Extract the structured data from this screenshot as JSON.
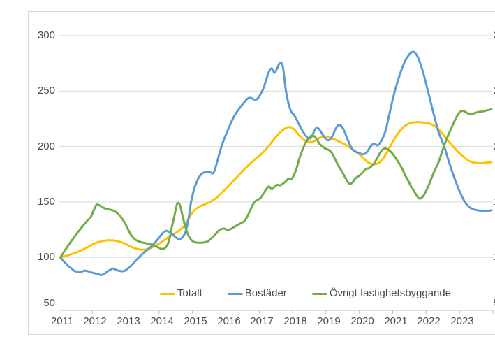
{
  "chart_data": {
    "type": "line",
    "frequency": "monthly",
    "x_start": "2011-01",
    "x_end": "2023-12",
    "x_tick_labels": [
      "2011",
      "2012",
      "2013",
      "2014",
      "2015",
      "2016",
      "2017",
      "2018",
      "2019",
      "2020",
      "2021",
      "2022",
      "2023"
    ],
    "y_ticks": [
      300,
      250,
      200,
      150,
      100,
      50
    ],
    "ylim": [
      50,
      310
    ],
    "grid": "horizontal",
    "legend_position": "bottom",
    "y_axis": "both-left-and-right",
    "series": [
      {
        "name": "Totalt",
        "color": "#FFC000",
        "values": [
          100,
          100.8,
          101.5,
          102.2,
          103,
          103.8,
          104.8,
          105.8,
          107,
          108.2,
          109.5,
          111,
          112.2,
          113.2,
          114,
          114.6,
          115.1,
          115.4,
          115.5,
          115.4,
          115,
          114.4,
          113.6,
          112.6,
          111.4,
          110.2,
          109,
          108.1,
          107.4,
          107,
          107,
          107.3,
          108,
          109,
          110.2,
          111.6,
          113.2,
          115,
          116.8,
          118.4,
          119.9,
          121.4,
          123,
          124.8,
          127,
          130,
          134,
          138.5,
          142,
          144.2,
          145.8,
          147,
          148,
          149,
          150.2,
          151.8,
          153.5,
          155.8,
          158.2,
          160.8,
          163.4,
          166,
          168.6,
          171.2,
          173.8,
          176.4,
          179,
          181.5,
          184,
          186.3,
          188.5,
          190.6,
          192.6,
          195,
          197.8,
          200.8,
          204,
          207.2,
          210.2,
          212.8,
          215,
          216.6,
          217.5,
          217.2,
          215.5,
          212.8,
          209.8,
          207.2,
          205.3,
          204.2,
          204,
          204.6,
          206,
          207.6,
          208.8,
          209.2,
          208.8,
          208,
          207,
          205.9,
          204.8,
          203.6,
          202.3,
          200.8,
          199.2,
          197.5,
          195.8,
          194,
          191.8,
          189.4,
          187,
          185.2,
          184.2,
          184,
          184.6,
          186.2,
          189,
          192.8,
          197.2,
          202,
          206.4,
          210.4,
          213.8,
          216.6,
          218.8,
          220.3,
          221.2,
          221.7,
          222,
          222,
          221.8,
          221.4,
          221,
          220.4,
          219.4,
          217.8,
          215.6,
          212.8,
          209.6,
          206.4,
          203.4,
          200.6,
          197.8,
          195.2,
          192.8,
          190.6,
          188.6,
          187,
          186,
          185.4,
          185,
          184.9,
          185,
          185.3,
          185.7,
          186
        ]
      },
      {
        "name": "Bostäder",
        "color": "#5B9BD5",
        "values": [
          100,
          97,
          94.5,
          92,
          90,
          88,
          87,
          86.5,
          87.5,
          88,
          87.5,
          86.5,
          86,
          85.2,
          84.5,
          84.2,
          85.5,
          87.5,
          89,
          90,
          88.8,
          88,
          87.6,
          87.8,
          89.5,
          91.5,
          94,
          96.8,
          99.4,
          102,
          104.4,
          106.3,
          108.4,
          110.8,
          113.3,
          116.3,
          119.5,
          122.5,
          124,
          123.2,
          121.5,
          119.2,
          117.2,
          116.5,
          118.5,
          123,
          134,
          150,
          161,
          168,
          173,
          175.8,
          176.8,
          177,
          176.6,
          176,
          183,
          192,
          200.5,
          207.5,
          213.5,
          219.5,
          225,
          229.5,
          233,
          236.5,
          239.5,
          242.5,
          244,
          243.2,
          242.2,
          243.5,
          247.5,
          252.5,
          260,
          267.5,
          270.5,
          266.5,
          271,
          275.5,
          272,
          252,
          239,
          231.5,
          228.5,
          224,
          219,
          214.5,
          210.5,
          207.8,
          207.5,
          212.5,
          216.8,
          215.8,
          212,
          208.2,
          205.8,
          206.5,
          210.5,
          216,
          219.5,
          218.5,
          214.5,
          208,
          202,
          197.5,
          195.5,
          194.5,
          193.5,
          193,
          194.5,
          198,
          201.5,
          202.5,
          201,
          203.5,
          208,
          215,
          226,
          237,
          247.5,
          256.5,
          264.5,
          271.5,
          277.5,
          281.5,
          284.5,
          285.5,
          283,
          278,
          270.5,
          261.5,
          251.5,
          241.5,
          231.5,
          222,
          213,
          206.5,
          200,
          192,
          184,
          176.5,
          169.5,
          163,
          157,
          152,
          148,
          145.5,
          144,
          143,
          142.5,
          142,
          141.8,
          141.8,
          142,
          142.5
        ]
      },
      {
        "name": "Övrigt fastighetsbyggande",
        "color": "#70AD47",
        "values": [
          100,
          104,
          107.8,
          111.4,
          115,
          118.4,
          121.8,
          125,
          128.2,
          131.2,
          134,
          136.6,
          142.5,
          147.5,
          147,
          145.5,
          144.3,
          143.5,
          143,
          142.3,
          140.8,
          138.6,
          135.6,
          131.8,
          127,
          122,
          118.3,
          116,
          114.6,
          113.8,
          113.2,
          112.6,
          112,
          111.3,
          110.4,
          109.3,
          108,
          107.6,
          109.5,
          114.5,
          126.5,
          137.5,
          148.5,
          147,
          136.5,
          127,
          120,
          116,
          114,
          113.4,
          113.2,
          113.3,
          113.7,
          114.5,
          116.5,
          119,
          121.6,
          124.3,
          125.7,
          126,
          124.9,
          125.3,
          126.7,
          128.2,
          129.6,
          131,
          132.4,
          136,
          141,
          146.5,
          150.5,
          152,
          153.8,
          157.5,
          161.5,
          164,
          161.5,
          163.8,
          165.5,
          165,
          166.5,
          168.5,
          171,
          170.5,
          174.5,
          181,
          190,
          196.5,
          202.5,
          206.5,
          209.5,
          209.7,
          207.5,
          203,
          200.5,
          198.5,
          197.5,
          196,
          192.5,
          187.5,
          182.5,
          178.5,
          174,
          169.5,
          166.2,
          167.5,
          171,
          173,
          174.8,
          177.5,
          180,
          180.5,
          182.5,
          185.5,
          190,
          194.5,
          197.5,
          198.3,
          197,
          194.8,
          191.5,
          188,
          184,
          179.5,
          174,
          169.5,
          164.6,
          160.5,
          156.3,
          153.2,
          154,
          157.5,
          162.5,
          168.5,
          175,
          180.5,
          186,
          193.5,
          201,
          207.5,
          213.5,
          219,
          224.5,
          229,
          231.8,
          232,
          230.8,
          229.3,
          229.4,
          230.2,
          231,
          231.4,
          231.8,
          232.4,
          233,
          233.6
        ]
      }
    ]
  },
  "colors": {
    "gridline": "#d9d9d9",
    "axis_line": "#bfbfbf",
    "tick": "#bfbfbf",
    "label_text": "#4d4d4d",
    "background": "#ffffff",
    "border": "#d9d9d9"
  }
}
